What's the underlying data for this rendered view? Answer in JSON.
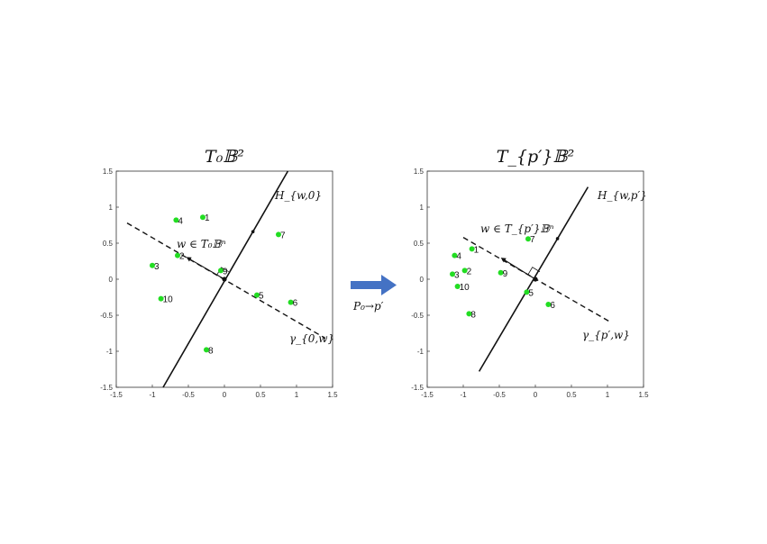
{
  "colors": {
    "point": "#22dd22",
    "line": "#111111",
    "arrow": "#4472c4"
  },
  "arrow_label": "P₀→p′",
  "panels": [
    {
      "id": "left",
      "title": "T₀𝔹²",
      "hyperplane_label": "H_{w,0}",
      "geodesic_label": "γ_{0,w}",
      "vector_label": "w ∈ T₀𝔹ⁿ",
      "xlim": [
        -1.5,
        1.5
      ],
      "ylim": [
        -1.5,
        1.5
      ],
      "xticks": [
        "-1.5",
        "-1",
        "-0.5",
        "0",
        "0.5",
        "1",
        "1.5"
      ],
      "yticks": [
        "1.5",
        "1",
        "0.5",
        "0",
        "-0.5",
        "-1",
        "-1.5"
      ],
      "origin": [
        0,
        0
      ],
      "hyperplane": [
        [
          -0.85,
          -1.5
        ],
        [
          0.88,
          1.5
        ]
      ],
      "geodesic": [
        [
          -1.35,
          0.78
        ],
        [
          1.4,
          -0.82
        ]
      ],
      "vector_tip": [
        -0.5,
        0.29
      ],
      "points": [
        {
          "label": "1",
          "x": -0.3,
          "y": 0.86
        },
        {
          "label": "2",
          "x": -0.65,
          "y": 0.33
        },
        {
          "label": "3",
          "x": -1.0,
          "y": 0.19
        },
        {
          "label": "4",
          "x": -0.67,
          "y": 0.82
        },
        {
          "label": "5",
          "x": 0.45,
          "y": -0.22
        },
        {
          "label": "6",
          "x": 0.92,
          "y": -0.32
        },
        {
          "label": "7",
          "x": 0.75,
          "y": 0.62
        },
        {
          "label": "8",
          "x": -0.25,
          "y": -0.98
        },
        {
          "label": "9",
          "x": -0.05,
          "y": 0.12
        },
        {
          "label": "10",
          "x": -0.88,
          "y": -0.27
        }
      ]
    },
    {
      "id": "right",
      "title": "T_{p′}𝔹²",
      "hyperplane_label": "H_{w,p′}",
      "geodesic_label": "γ_{p′,w}",
      "vector_label": "w ∈ T_{p′}𝔹ⁿ",
      "xlim": [
        -1.5,
        1.5
      ],
      "ylim": [
        -1.5,
        1.5
      ],
      "xticks": [
        "-1.5",
        "-1",
        "-0.5",
        "0",
        "0.5",
        "1",
        "1.5"
      ],
      "yticks": [
        "1.5",
        "1",
        "0.5",
        "0",
        "-0.5",
        "-1",
        "-1.5"
      ],
      "origin": [
        0,
        0
      ],
      "hyperplane": [
        [
          -0.78,
          -1.28
        ],
        [
          0.73,
          1.28
        ]
      ],
      "geodesic": [
        [
          -1.0,
          0.58
        ],
        [
          1.05,
          -0.6
        ]
      ],
      "vector_tip": [
        -0.45,
        0.28
      ],
      "points": [
        {
          "label": "1",
          "x": -0.88,
          "y": 0.42
        },
        {
          "label": "2",
          "x": -0.98,
          "y": 0.12
        },
        {
          "label": "3",
          "x": -1.15,
          "y": 0.07
        },
        {
          "label": "4",
          "x": -1.12,
          "y": 0.33
        },
        {
          "label": "5",
          "x": -0.12,
          "y": -0.18
        },
        {
          "label": "6",
          "x": 0.18,
          "y": -0.35
        },
        {
          "label": "7",
          "x": -0.1,
          "y": 0.56
        },
        {
          "label": "8",
          "x": -0.92,
          "y": -0.48
        },
        {
          "label": "9",
          "x": -0.48,
          "y": 0.09
        },
        {
          "label": "10",
          "x": -1.08,
          "y": -0.1
        }
      ]
    }
  ]
}
